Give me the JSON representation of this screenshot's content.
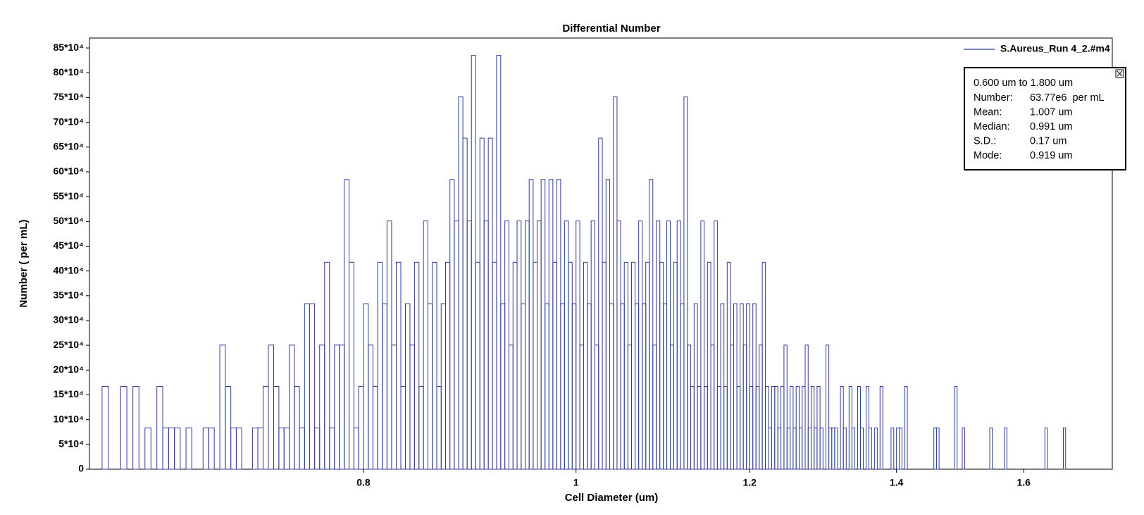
{
  "chart_data": {
    "type": "histogram",
    "title": "Differential Number",
    "xlabel": "Cell Diameter (um)",
    "ylabel": "Number ( per mL)",
    "xscale": "log",
    "xlim": [
      0.6,
      1.756
    ],
    "xticks": [
      0.8,
      1,
      1.2,
      1.4,
      1.6
    ],
    "ylim": [
      0,
      870000
    ],
    "yticks": [
      0,
      {
        "value": 50000,
        "label": "5*10⁴"
      },
      {
        "value": 100000,
        "label": "10*10⁴"
      },
      {
        "value": 150000,
        "label": "15*10⁴"
      },
      {
        "value": 200000,
        "label": "20*10⁴"
      },
      {
        "value": 250000,
        "label": "25*10⁴"
      },
      {
        "value": 300000,
        "label": "30*10⁴"
      },
      {
        "value": 350000,
        "label": "35*10⁴"
      },
      {
        "value": 400000,
        "label": "40*10⁴"
      },
      {
        "value": 450000,
        "label": "45*10⁴"
      },
      {
        "value": 500000,
        "label": "50*10⁴"
      },
      {
        "value": 550000,
        "label": "55*10⁴"
      },
      {
        "value": 600000,
        "label": "60*10⁴"
      },
      {
        "value": 650000,
        "label": "65*10⁴"
      },
      {
        "value": 700000,
        "label": "70*10⁴"
      },
      {
        "value": 750000,
        "label": "75*10⁴"
      },
      {
        "value": 800000,
        "label": "80*10⁴"
      },
      {
        "value": 850000,
        "label": "85*10⁴"
      }
    ],
    "grid": false,
    "legend": "upper right",
    "series": [
      {
        "name": "S.Aureus_Run 4_2.#m4",
        "color": "#2e3d98",
        "bins": [
          0.6,
          0.604,
          0.608,
          0.612,
          0.616,
          0.62,
          0.624,
          0.628,
          0.632,
          0.636,
          0.64,
          0.644,
          0.648,
          0.652,
          0.656,
          0.66,
          0.664,
          0.668,
          0.672,
          0.676,
          0.68,
          0.684,
          0.688,
          0.692,
          0.696,
          0.7,
          0.704,
          0.708,
          0.712,
          0.716,
          0.72,
          0.724,
          0.728,
          0.732,
          0.736,
          0.74,
          0.744,
          0.748,
          0.752,
          0.756,
          0.76,
          0.764,
          0.768,
          0.772,
          0.776,
          0.78,
          0.784,
          0.788,
          0.792,
          0.796,
          0.8,
          0.804,
          0.808,
          0.812,
          0.816,
          0.82,
          0.824,
          0.828,
          0.832,
          0.836,
          0.84,
          0.844,
          0.848,
          0.852,
          0.856,
          0.86,
          0.864,
          0.868,
          0.872,
          0.876,
          0.88,
          0.884,
          0.888,
          0.892,
          0.896,
          0.9,
          0.904,
          0.908,
          0.912,
          0.916,
          0.92,
          0.924,
          0.928,
          0.932,
          0.936,
          0.94,
          0.944,
          0.948,
          0.952,
          0.956,
          0.96,
          0.964,
          0.968,
          0.972,
          0.976,
          0.98,
          0.984,
          0.988,
          0.992,
          0.996,
          1.0,
          1.004,
          1.008,
          1.012,
          1.016,
          1.02,
          1.024,
          1.028,
          1.032,
          1.036,
          1.04,
          1.044,
          1.048,
          1.052,
          1.056,
          1.06,
          1.064,
          1.068,
          1.072,
          1.076,
          1.08,
          1.084,
          1.088,
          1.092,
          1.096,
          1.1,
          1.104,
          1.108,
          1.112,
          1.116,
          1.12,
          1.124,
          1.128,
          1.132,
          1.136,
          1.14,
          1.144,
          1.148,
          1.152,
          1.156,
          1.16,
          1.164,
          1.168,
          1.172,
          1.176,
          1.18,
          1.184,
          1.188,
          1.192,
          1.196,
          1.2,
          1.204,
          1.208,
          1.212,
          1.216,
          1.22,
          1.224,
          1.228,
          1.232,
          1.236,
          1.24,
          1.244,
          1.248,
          1.252,
          1.256,
          1.26,
          1.264,
          1.268,
          1.272,
          1.276,
          1.28,
          1.284,
          1.288,
          1.292,
          1.296,
          1.3,
          1.304,
          1.308,
          1.312,
          1.316,
          1.32,
          1.324,
          1.328,
          1.332,
          1.336,
          1.34,
          1.344,
          1.348,
          1.352,
          1.356,
          1.36,
          1.364,
          1.368,
          1.372,
          1.376,
          1.38,
          1.384,
          1.388,
          1.392,
          1.396,
          1.4,
          1.404,
          1.408,
          1.412,
          1.416,
          1.42,
          1.424,
          1.428,
          1.432,
          1.436,
          1.44,
          1.444,
          1.448,
          1.452,
          1.456,
          1.46,
          1.464,
          1.468,
          1.472,
          1.476,
          1.48,
          1.484,
          1.488,
          1.492,
          1.496,
          1.5,
          1.504,
          1.508,
          1.512,
          1.516,
          1.52,
          1.524,
          1.528,
          1.532,
          1.536,
          1.54,
          1.544,
          1.548,
          1.552,
          1.556,
          1.56,
          1.564,
          1.568,
          1.572,
          1.576,
          1.58,
          1.584,
          1.588,
          1.592,
          1.596,
          1.6,
          1.604,
          1.608,
          1.612,
          1.616,
          1.62,
          1.624,
          1.628,
          1.632,
          1.636,
          1.64,
          1.644,
          1.648,
          1.652,
          1.656,
          1.66,
          1.664,
          1.668,
          1.672,
          1.676,
          1.68,
          1.684,
          1.688,
          1.692,
          1.696,
          1.7,
          1.704,
          1.708,
          1.712,
          1.716,
          1.72,
          1.724,
          1.728,
          1.732,
          1.736,
          1.74,
          1.744,
          1.748,
          1.752,
          1.756
        ],
        "values": [
          0,
          0,
          167000,
          0,
          0,
          167000,
          0,
          167000,
          0,
          83500,
          0,
          167000,
          83500,
          83500,
          83500,
          0,
          83500,
          0,
          0,
          83500,
          83500,
          0,
          250500,
          167000,
          83500,
          83500,
          0,
          0,
          83500,
          83500,
          167000,
          250500,
          167000,
          83500,
          83500,
          250500,
          167000,
          83500,
          334000,
          334000,
          83500,
          250500,
          417500,
          83500,
          250500,
          250500,
          584500,
          417500,
          83500,
          167000,
          334000,
          250500,
          167000,
          417500,
          334000,
          501000,
          250500,
          417500,
          167000,
          334000,
          250500,
          417500,
          167000,
          501000,
          334000,
          417500,
          167000,
          334000,
          417500,
          584500,
          501000,
          751500,
          668000,
          501000,
          835000,
          417500,
          668000,
          501000,
          668000,
          417500,
          835000,
          334000,
          501000,
          250500,
          417500,
          501000,
          334000,
          501000,
          584500,
          417500,
          501000,
          584500,
          334000,
          584500,
          417500,
          584500,
          334000,
          501000,
          417500,
          334000,
          501000,
          250500,
          417500,
          334000,
          501000,
          250500,
          668000,
          417500,
          584500,
          334000,
          751500,
          501000,
          334000,
          417500,
          250500,
          417500,
          334000,
          501000,
          334000,
          417500,
          584500,
          250500,
          501000,
          417500,
          334000,
          501000,
          250500,
          417500,
          501000,
          334000,
          751500,
          250500,
          167000,
          334000,
          167000,
          501000,
          167000,
          417500,
          250500,
          501000,
          167000,
          334000,
          167000,
          417500,
          250500,
          334000,
          167000,
          334000,
          250500,
          334000,
          167000,
          334000,
          167000,
          250500,
          417500,
          167000,
          83500,
          167000,
          167000,
          83500,
          167000,
          250500,
          83500,
          167000,
          83500,
          167000,
          83500,
          167000,
          250500,
          83500,
          167000,
          83500,
          167000,
          83500,
          0,
          250500,
          83500,
          83500,
          83500,
          0,
          167000,
          83500,
          0,
          167000,
          83500,
          0,
          167000,
          83500,
          0,
          167000,
          83500,
          0,
          83500,
          0,
          167000,
          0,
          0,
          0,
          83500,
          0,
          83500,
          83500,
          0,
          167000,
          0,
          0,
          0,
          0,
          0,
          0,
          0,
          0,
          0,
          0,
          83500,
          83500,
          0,
          0,
          0,
          0,
          0,
          0,
          167000,
          0,
          0,
          83500,
          0,
          0,
          0,
          0,
          0,
          0,
          0,
          0,
          0,
          0,
          83500,
          0,
          0,
          0,
          0,
          0,
          83500,
          0,
          0,
          0,
          0,
          0,
          0,
          0,
          0,
          0,
          0,
          0,
          0,
          0,
          0,
          0,
          0,
          83500,
          0,
          0,
          0,
          0,
          0,
          0,
          0,
          83500,
          0,
          0,
          0,
          0,
          0,
          0,
          0,
          0,
          0,
          0,
          0,
          0,
          0,
          0,
          0,
          0,
          0,
          0,
          0,
          0,
          0
        ]
      }
    ]
  },
  "stats_box": {
    "range": "0.600 um to 1.800 um",
    "rows": [
      [
        "Number:",
        "63.77e6  per mL"
      ],
      [
        "Mean:",
        "1.007 um"
      ],
      [
        "Median:",
        "0.991 um"
      ],
      [
        "S.D.:",
        "0.17 um"
      ],
      [
        "Mode:",
        "0.919 um"
      ]
    ]
  }
}
